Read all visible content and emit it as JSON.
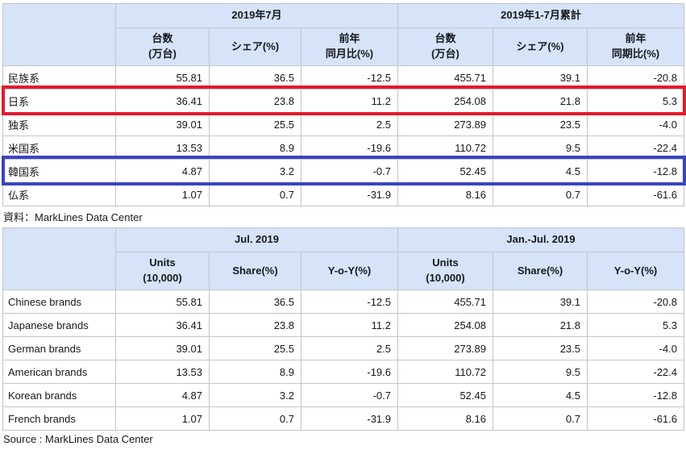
{
  "palette": {
    "header_bg": "#d6e3f8",
    "grid_line": "#c4c5cb",
    "outer_border": "#a8abb4",
    "highlight_red": "#e5192b",
    "highlight_blue": "#3a44c0"
  },
  "tables": [
    {
      "lang": "japanese",
      "group_headers": [
        "2019年7月",
        "2019年1-7月累計"
      ],
      "col_headers": [
        [
          "台数",
          "(万台)"
        ],
        [
          "シェア(%)"
        ],
        [
          "前年",
          "同月比(%)"
        ],
        [
          "台数",
          "(万台)"
        ],
        [
          "シェア(%)"
        ],
        [
          "前年",
          "同期比(%)"
        ]
      ],
      "rows": [
        {
          "label": "民族系",
          "values": [
            "55.81",
            "36.5",
            "-12.5",
            "455.71",
            "39.1",
            "-20.8"
          ],
          "highlight": null
        },
        {
          "label": "日系",
          "values": [
            "36.41",
            "23.8",
            "11.2",
            "254.08",
            "21.8",
            "5.3"
          ],
          "highlight": "red"
        },
        {
          "label": "独系",
          "values": [
            "39.01",
            "25.5",
            "2.5",
            "273.89",
            "23.5",
            "-4.0"
          ],
          "highlight": null
        },
        {
          "label": "米国系",
          "values": [
            "13.53",
            "8.9",
            "-19.6",
            "110.72",
            "9.5",
            "-22.4"
          ],
          "highlight": null
        },
        {
          "label": "韓国系",
          "values": [
            "4.87",
            "3.2",
            "-0.7",
            "52.45",
            "4.5",
            "-12.8"
          ],
          "highlight": "blue"
        },
        {
          "label": "仏系",
          "values": [
            "1.07",
            "0.7",
            "-31.9",
            "8.16",
            "0.7",
            "-61.6"
          ],
          "highlight": null
        }
      ],
      "source": "資料：MarkLines Data Center"
    },
    {
      "lang": "english",
      "group_headers": [
        "Jul. 2019",
        "Jan.-Jul. 2019"
      ],
      "col_headers": [
        [
          "Units",
          "(10,000)"
        ],
        [
          "Share(%)"
        ],
        [
          "Y-o-Y(%)"
        ],
        [
          "Units",
          "(10,000)"
        ],
        [
          "Share(%)"
        ],
        [
          "Y-o-Y(%)"
        ]
      ],
      "rows": [
        {
          "label": "Chinese brands",
          "values": [
            "55.81",
            "36.5",
            "-12.5",
            "455.71",
            "39.1",
            "-20.8"
          ],
          "highlight": null
        },
        {
          "label": "Japanese brands",
          "values": [
            "36.41",
            "23.8",
            "11.2",
            "254.08",
            "21.8",
            "5.3"
          ],
          "highlight": null
        },
        {
          "label": "German brands",
          "values": [
            "39.01",
            "25.5",
            "2.5",
            "273.89",
            "23.5",
            "-4.0"
          ],
          "highlight": null
        },
        {
          "label": "American brands",
          "values": [
            "13.53",
            "8.9",
            "-19.6",
            "110.72",
            "9.5",
            "-22.4"
          ],
          "highlight": null
        },
        {
          "label": "Korean brands",
          "values": [
            "4.87",
            "3.2",
            "-0.7",
            "52.45",
            "4.5",
            "-12.8"
          ],
          "highlight": null
        },
        {
          "label": "French brands",
          "values": [
            "1.07",
            "0.7",
            "-31.9",
            "8.16",
            "0.7",
            "-61.6"
          ],
          "highlight": null
        }
      ],
      "source": "Source : MarkLines Data Center"
    }
  ],
  "chart_data": [
    {
      "type": "table",
      "period_groups": [
        "2019年7月",
        "2019年1-7月累計"
      ],
      "columns": [
        "台数(万台)",
        "シェア(%)",
        "前年同月比(%)",
        "台数(万台)",
        "シェア(%)",
        "前年同期比(%)"
      ],
      "rows": [
        {
          "label": "民族系",
          "values": [
            55.81,
            36.5,
            -12.5,
            455.71,
            39.1,
            -20.8
          ],
          "highlight": null
        },
        {
          "label": "日系",
          "values": [
            36.41,
            23.8,
            11.2,
            254.08,
            21.8,
            5.3
          ],
          "highlight": "red"
        },
        {
          "label": "独系",
          "values": [
            39.01,
            25.5,
            2.5,
            273.89,
            23.5,
            -4.0
          ],
          "highlight": null
        },
        {
          "label": "米国系",
          "values": [
            13.53,
            8.9,
            -19.6,
            110.72,
            9.5,
            -22.4
          ],
          "highlight": null
        },
        {
          "label": "韓国系",
          "values": [
            4.87,
            3.2,
            -0.7,
            52.45,
            4.5,
            -12.8
          ],
          "highlight": "blue"
        },
        {
          "label": "仏系",
          "values": [
            1.07,
            0.7,
            -31.9,
            8.16,
            0.7,
            -61.6
          ],
          "highlight": null
        }
      ],
      "source": "資料：MarkLines Data Center"
    },
    {
      "type": "table",
      "period_groups": [
        "Jul. 2019",
        "Jan.-Jul. 2019"
      ],
      "columns": [
        "Units (10,000)",
        "Share(%)",
        "Y-o-Y(%)",
        "Units (10,000)",
        "Share(%)",
        "Y-o-Y(%)"
      ],
      "rows": [
        {
          "label": "Chinese brands",
          "values": [
            55.81,
            36.5,
            -12.5,
            455.71,
            39.1,
            -20.8
          ],
          "highlight": null
        },
        {
          "label": "Japanese brands",
          "values": [
            36.41,
            23.8,
            11.2,
            254.08,
            21.8,
            5.3
          ],
          "highlight": null
        },
        {
          "label": "German brands",
          "values": [
            39.01,
            25.5,
            2.5,
            273.89,
            23.5,
            -4.0
          ],
          "highlight": null
        },
        {
          "label": "American brands",
          "values": [
            13.53,
            8.9,
            -19.6,
            110.72,
            9.5,
            -22.4
          ],
          "highlight": null
        },
        {
          "label": "Korean brands",
          "values": [
            4.87,
            3.2,
            -0.7,
            52.45,
            4.5,
            -12.8
          ],
          "highlight": null
        },
        {
          "label": "French brands",
          "values": [
            1.07,
            0.7,
            -31.9,
            8.16,
            0.7,
            -61.6
          ],
          "highlight": null
        }
      ],
      "source": "Source : MarkLines Data Center"
    }
  ]
}
